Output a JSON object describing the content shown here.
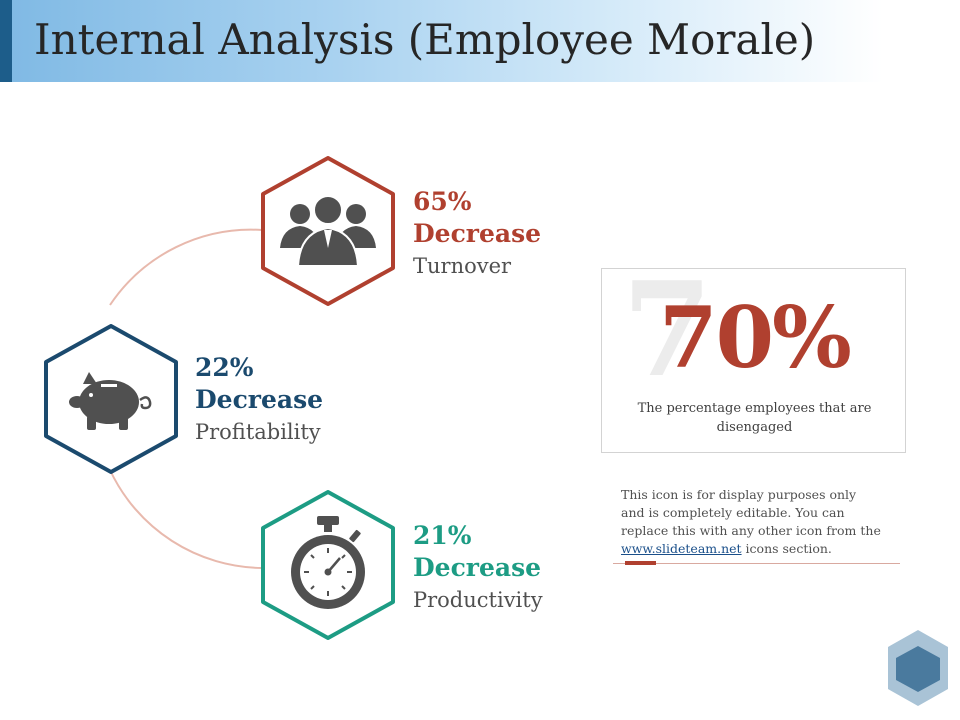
{
  "title": "Internal Analysis (Employee Morale)",
  "stats": [
    {
      "percent": "65%",
      "change": "Decrease",
      "label": "Turnover",
      "icon": "people-group-icon",
      "color": "#b0402f"
    },
    {
      "percent": "22%",
      "change": "Decrease",
      "label": "Profitability",
      "icon": "piggy-bank-icon",
      "color": "#1b4a6e"
    },
    {
      "percent": "21%",
      "change": "Decrease",
      "label": "Productivity",
      "icon": "stopwatch-icon",
      "color": "#1d9c84"
    }
  ],
  "highlight": {
    "background_digit": "7",
    "percent": "70%",
    "caption": "The percentage employees that are disengaged",
    "color": "#b0402f"
  },
  "note": {
    "text_before": "This icon is for display purposes only and is completely editable. You can replace this with any other icon from the ",
    "link": "www.slideteam.net",
    "text_after": " icons section."
  },
  "colors": {
    "title_accent": "#1d5d8a",
    "connector": "#e8b9ad",
    "corner_hex": "#4a7a9e"
  }
}
